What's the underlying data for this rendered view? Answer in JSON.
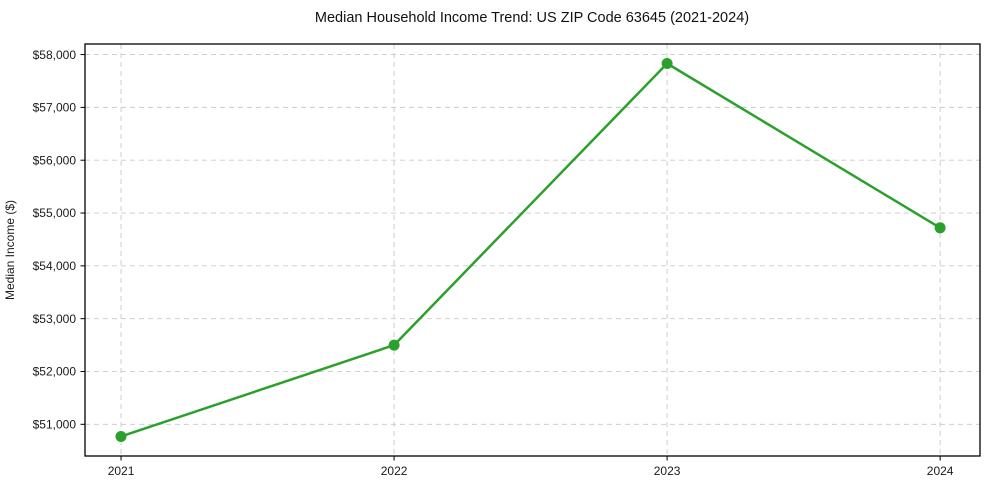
{
  "figure": {
    "background": "#ffffff"
  },
  "chart_data": {
    "type": "line",
    "title": "Median Household Income Trend: US ZIP Code 63645 (2021-2024)",
    "xlabel": "",
    "ylabel": "Median Income ($)",
    "x": [
      2021,
      2022,
      2023,
      2024
    ],
    "categories": [
      "2021",
      "2022",
      "2023",
      "2024"
    ],
    "series": [
      {
        "name": "Median Household Income",
        "values": [
          50770,
          52500,
          57830,
          54720
        ]
      }
    ],
    "xlim": [
      2020.868,
      2024.146
    ],
    "ylim": [
      50400,
      58200
    ],
    "yticks": [
      51000,
      52000,
      53000,
      54000,
      55000,
      56000,
      57000,
      58000
    ],
    "ytick_labels": [
      "$51,000",
      "$52,000",
      "$53,000",
      "$54,000",
      "$55,000",
      "$56,000",
      "$57,000",
      "$58,000"
    ],
    "xticks": [
      2021,
      2022,
      2023,
      2024
    ],
    "xtick_labels": [
      "2021",
      "2022",
      "2023",
      "2024"
    ],
    "grid": true,
    "grid_style": "dashed",
    "legend": false,
    "legend_position": "none",
    "line_color": "#2ca02c",
    "marker": "circle",
    "marker_size": 5.5,
    "line_width": 2.5,
    "grid_color": "#c9c9c9",
    "spine_color": "#000000",
    "tick_color": "#000000",
    "text_color": "#1a1a1a",
    "background": "#ffffff"
  }
}
